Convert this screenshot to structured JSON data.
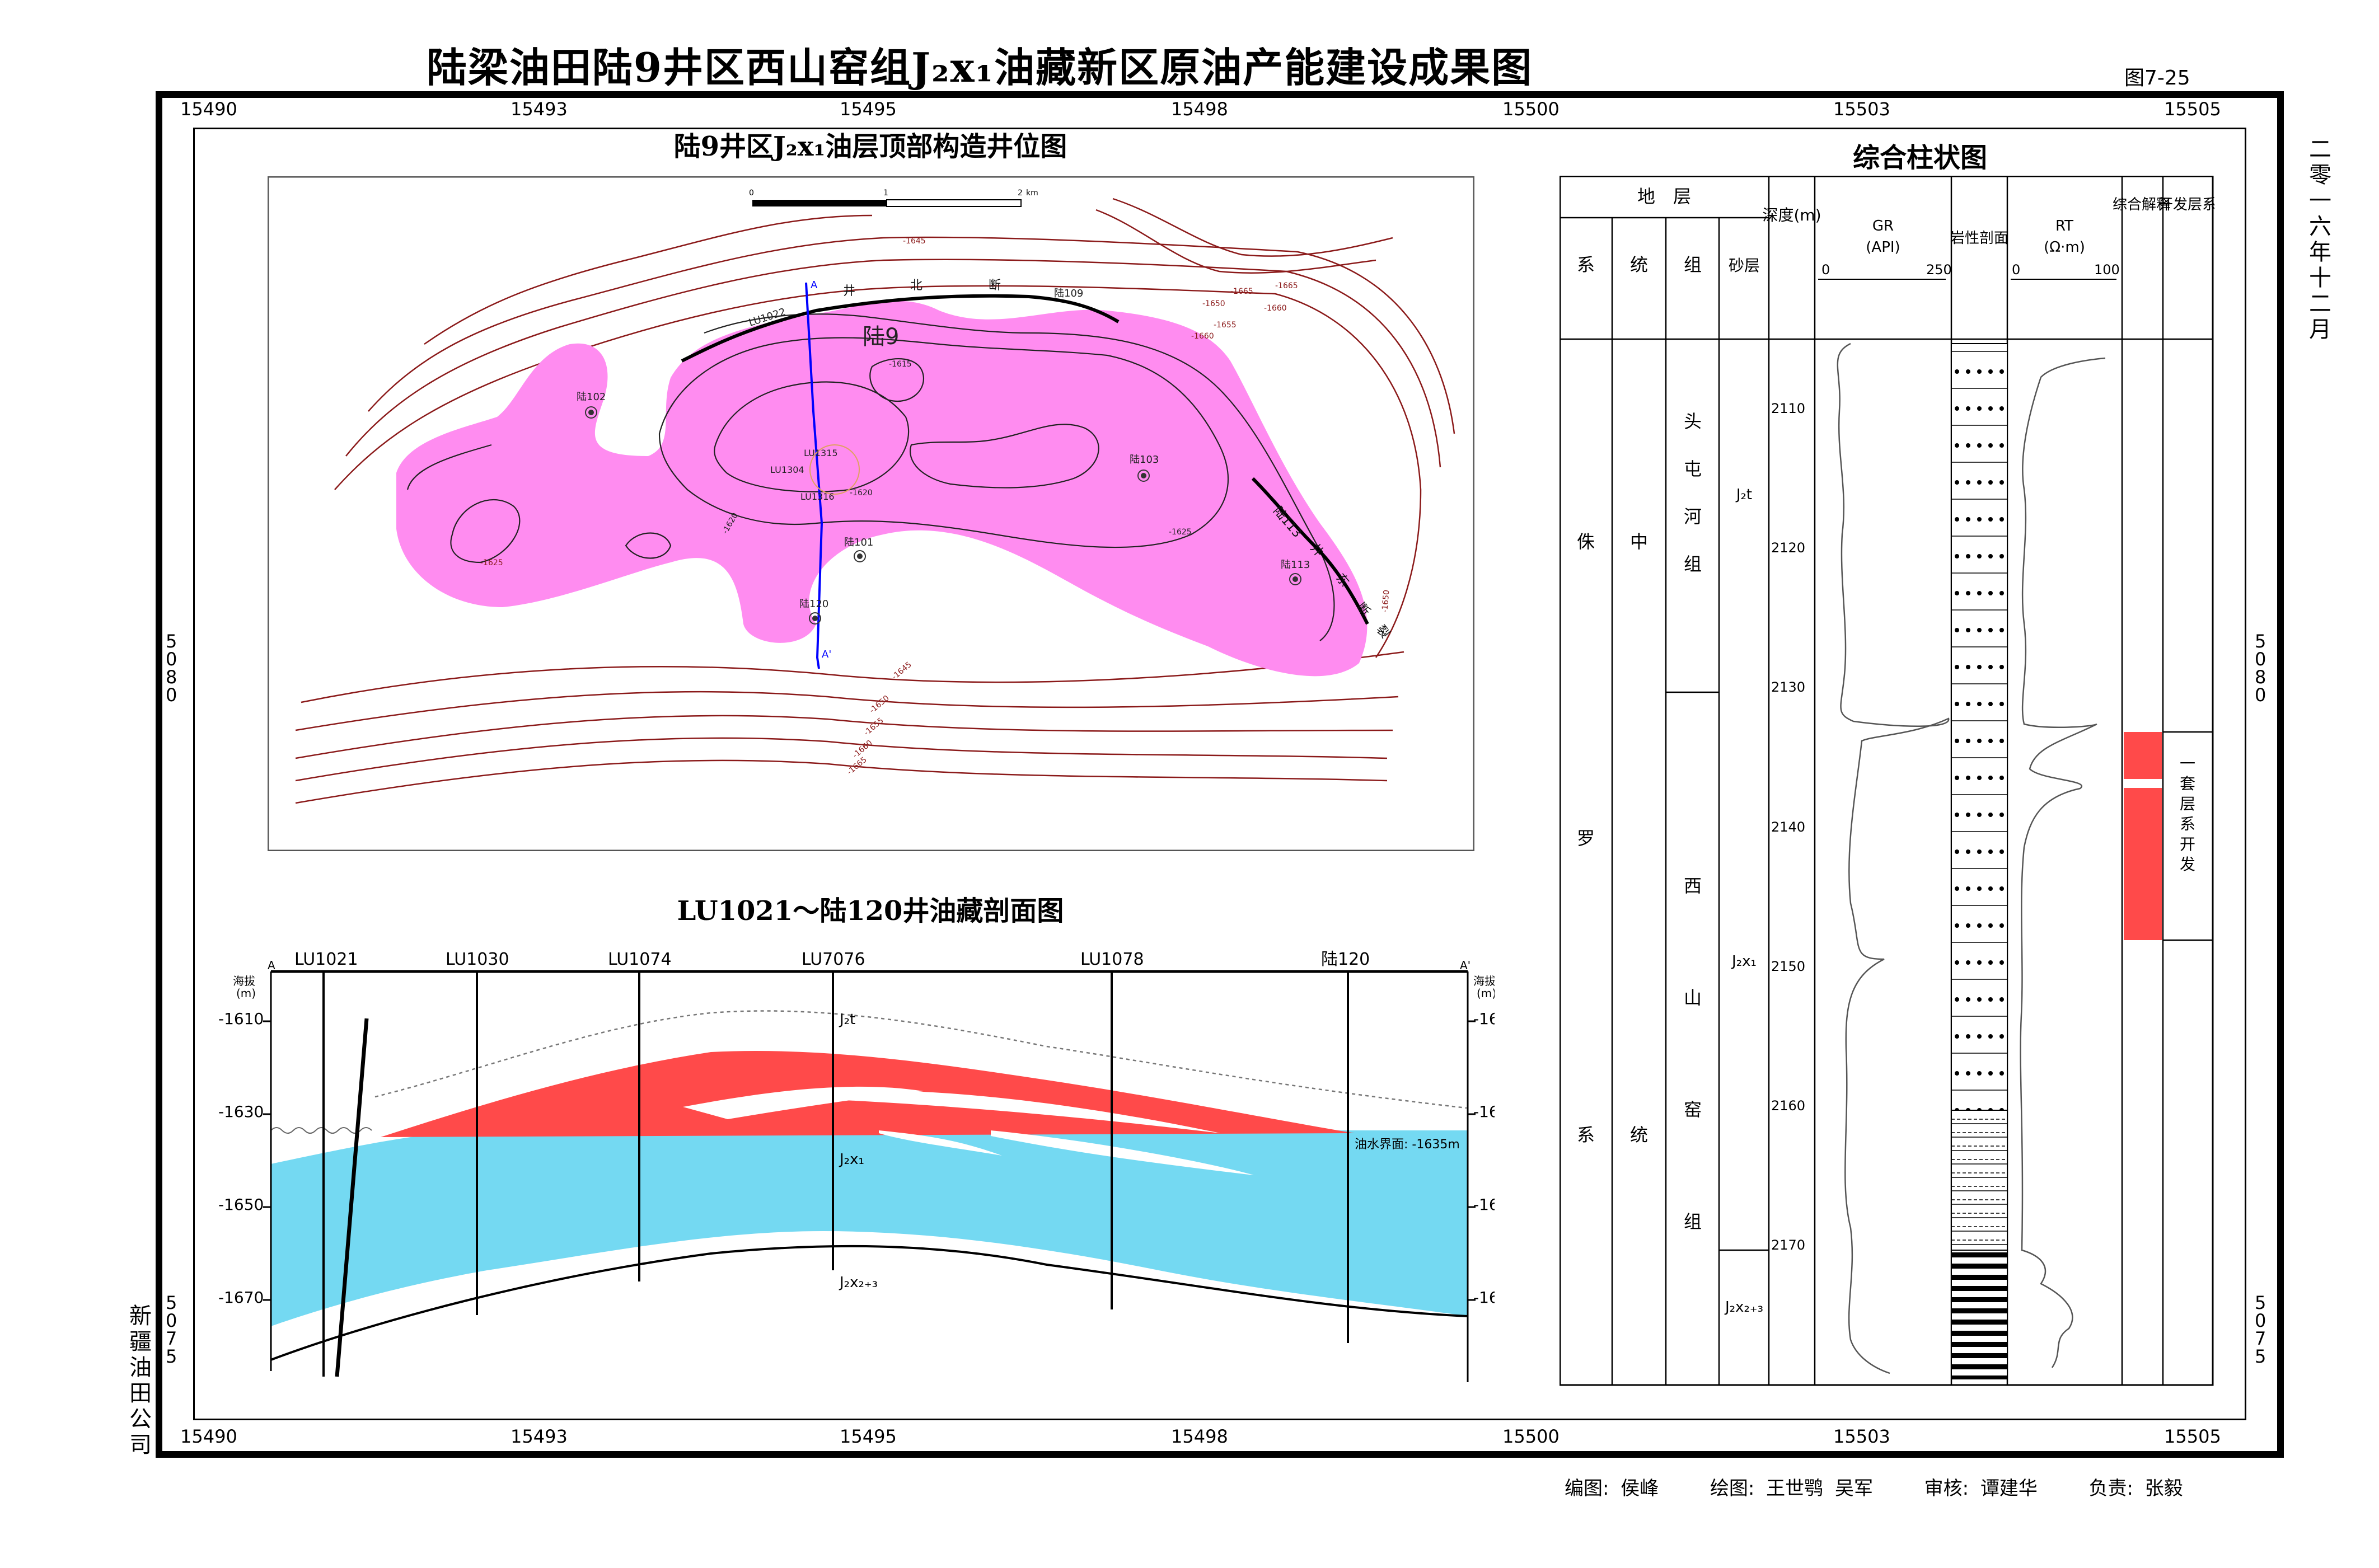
{
  "title": "陆梁油田陆9井区西山窑组J₂x₁油藏新区原油产能建设成果图",
  "figure_number": "图7-25",
  "date_vertical": "二零一六年十二月",
  "company_vertical": "新疆油田公司",
  "grid_labels": {
    "x_top": [
      "15490",
      "15493",
      "15495",
      "15498",
      "15500",
      "15503",
      "15505"
    ],
    "y_left": [
      "5080",
      "5075"
    ],
    "x_bottom": [
      "15490",
      "15493",
      "15495",
      "15498",
      "15500",
      "15503",
      "15505"
    ]
  },
  "map": {
    "title": "陆9井区J₂x₁油层顶部构造井位图",
    "scale_labels": [
      "0",
      "1",
      "2",
      "km"
    ],
    "wells": [
      {
        "name": "陆102"
      },
      {
        "name": "陆103"
      },
      {
        "name": "陆101"
      },
      {
        "name": "陆113"
      },
      {
        "name": "陆120"
      },
      {
        "name": "陆109"
      },
      {
        "name": "LU1022"
      },
      {
        "name": "LU1315"
      },
      {
        "name": "LU1304"
      },
      {
        "name": "LU1316"
      }
    ],
    "field_label": "陆9",
    "fault_labels": [
      "井",
      "北",
      "断",
      "陆113",
      "井",
      "东",
      "断",
      "裂"
    ],
    "section_line": {
      "start": "A",
      "end": "A'"
    },
    "contour_labels": [
      "-1625",
      "-1625",
      "-1620",
      "-1645",
      "-1650",
      "-1655",
      "-1660",
      "-1665",
      "-1660",
      "-1665",
      "-1645",
      "-1650",
      "-1655",
      "-1660",
      "-1665",
      "-1615",
      "-1620",
      "-1650"
    ],
    "colors": {
      "oil_area": "#ff8cf0",
      "contour": "#8b1a1a",
      "fault": "#000000",
      "section": "#0000ff"
    }
  },
  "section": {
    "title": "LU1021～陆120井油藏剖面图",
    "wells": [
      "LU1021",
      "LU1030",
      "LU1074",
      "LU7076",
      "LU1078",
      "陆120"
    ],
    "axis_label": "海拔",
    "axis_unit": "(m)",
    "depth_ticks": [
      "-1610",
      "-1630",
      "-1650",
      "-1670"
    ],
    "a_labels": [
      "A",
      "A'"
    ],
    "layer_labels": [
      "J₂t",
      "J₂x₁",
      "J₂x₂₊₃"
    ],
    "owc_label": "油水界面: -1635m",
    "colors": {
      "oil": "#ff4a4a",
      "water": "#74d9f2"
    }
  },
  "column": {
    "title": "综合柱状图",
    "header": {
      "strata": "地　层",
      "system": "系",
      "series": "统",
      "formation": "组",
      "sand": "砂层",
      "depth": "深度(m)",
      "gr": "GR",
      "gr_unit": "(API)",
      "gr_min": "0",
      "gr_max": "250",
      "lithology": "岩性剖面",
      "rt": "RT",
      "rt_unit": "(Ω·m)",
      "rt_min": "0",
      "rt_max": "100",
      "interp": "综合解释",
      "dev": "开发层系"
    },
    "system_name": [
      "侏",
      "罗",
      "系"
    ],
    "series_name": [
      "中",
      "统"
    ],
    "formation_upper": [
      "头",
      "屯",
      "河",
      "组"
    ],
    "formation_lower": [
      "西",
      "山",
      "窑",
      "组"
    ],
    "sand_labels": [
      "J₂t",
      "J₂x₁",
      "J₂x₂₊₃"
    ],
    "depth_ticks": [
      "2110",
      "2120",
      "2130",
      "2140",
      "2150",
      "2160",
      "2170"
    ],
    "dev_label": "一套层系开发",
    "colors": {
      "interp": "#ff4a4a"
    }
  },
  "credits": {
    "edit": "编图: 侯峰",
    "draw": "绘图: 王世鹗  吴军",
    "review": "审核: 谭建华",
    "responsible": "负责: 张毅"
  }
}
